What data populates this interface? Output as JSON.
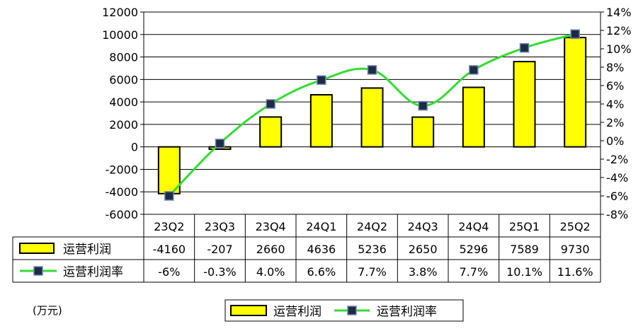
{
  "chart_data": {
    "type": "bar",
    "categories": [
      "23Q2",
      "23Q3",
      "23Q4",
      "24Q1",
      "24Q2",
      "24Q3",
      "24Q4",
      "25Q1",
      "25Q2"
    ],
    "series": [
      {
        "name": "运营利润",
        "type": "bar",
        "axis": "left",
        "color": "#FFFF00",
        "values": [
          -4160,
          -207,
          2660,
          4636,
          5236,
          2650,
          5296,
          7589,
          9730
        ],
        "display": [
          "-4160",
          "-207",
          "2660",
          "4636",
          "5236",
          "2650",
          "5296",
          "7589",
          "9730"
        ]
      },
      {
        "name": "运营利润率",
        "type": "line",
        "axis": "right",
        "color": "#33DD33",
        "marker_color": "#1F2A44",
        "values": [
          -6,
          -0.3,
          4.0,
          6.6,
          7.7,
          3.8,
          7.7,
          10.1,
          11.6
        ],
        "display": [
          "-6%",
          "-0.3%",
          "4.0%",
          "6.6%",
          "7.7%",
          "3.8%",
          "7.7%",
          "10.1%",
          "11.6%"
        ]
      }
    ],
    "y_left": {
      "min": -6000,
      "max": 12000,
      "step": 2000,
      "ticks": [
        "-6000",
        "-4000",
        "-2000",
        "0",
        "2000",
        "4000",
        "6000",
        "8000",
        "10000",
        "12000"
      ]
    },
    "y_right": {
      "min": -8,
      "max": 14,
      "step": 2,
      "ticks": [
        "-8%",
        "-6%",
        "-4%",
        "-2%",
        "0%",
        "2%",
        "4%",
        "6%",
        "8%",
        "10%",
        "12%",
        "14%"
      ]
    },
    "unit_label": "(万元)",
    "grid": true,
    "legend_position": "bottom-center",
    "table_below": true
  }
}
